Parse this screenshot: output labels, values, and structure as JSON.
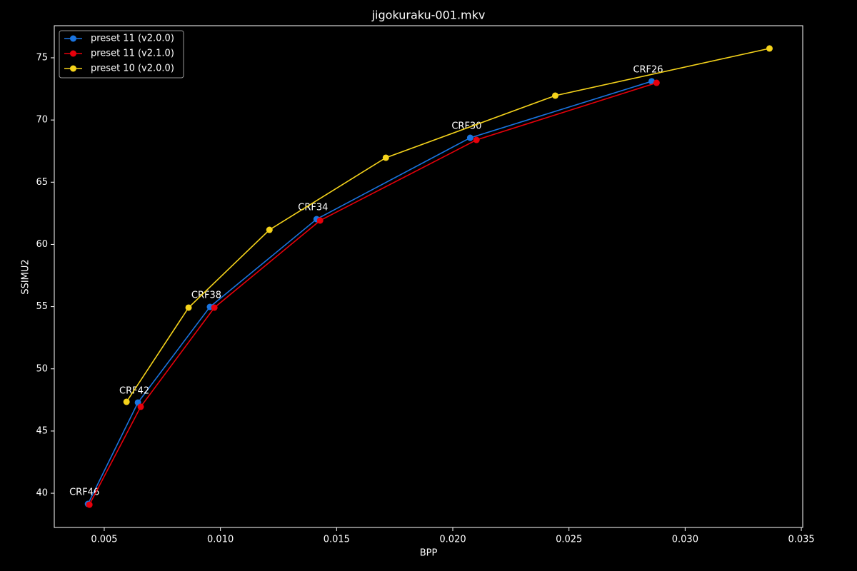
{
  "chart_data": {
    "type": "line",
    "title": "jigokuraku-001.mkv",
    "xlabel": "BPP",
    "ylabel": "SSIMU2",
    "xlim": [
      0.00285,
      0.03506
    ],
    "ylim": [
      37.25,
      77.58
    ],
    "xticks": [
      0.005,
      {
        "value": 0.01,
        "label": "0.010"
      },
      0.015,
      {
        "value": 0.02,
        "label": "0.020"
      },
      0.025,
      {
        "value": 0.03,
        "label": "0.030"
      },
      0.035
    ],
    "yticks": [
      40,
      45,
      50,
      55,
      60,
      65,
      70,
      75
    ],
    "legend": "upper left",
    "grid": false,
    "series": [
      {
        "name": "preset 11 (v2.0.0)",
        "color": "#1a74e0",
        "x": [
          0.0043,
          0.00645,
          0.00955,
          0.01414,
          0.02075,
          0.02856
        ],
        "values": [
          39.14,
          47.29,
          54.98,
          62.03,
          68.57,
          73.11
        ],
        "point_labels": [
          "CRF46",
          "CRF42",
          "CRF38",
          "CRF34",
          "CRF30",
          "CRF26"
        ]
      },
      {
        "name": "preset 11 (v2.1.0)",
        "color": "#e8000b",
        "x": [
          0.00436,
          0.00657,
          0.00974,
          0.01429,
          0.02102,
          0.02877
        ],
        "values": [
          39.08,
          46.95,
          54.92,
          61.92,
          68.4,
          72.99
        ]
      },
      {
        "name": "preset 10 (v2.0.0)",
        "color": "#f5d31b",
        "x": [
          0.00596,
          0.00863,
          0.01211,
          0.01712,
          0.02441,
          0.03363
        ],
        "values": [
          47.35,
          54.92,
          61.17,
          66.97,
          71.96,
          75.75
        ]
      }
    ]
  }
}
